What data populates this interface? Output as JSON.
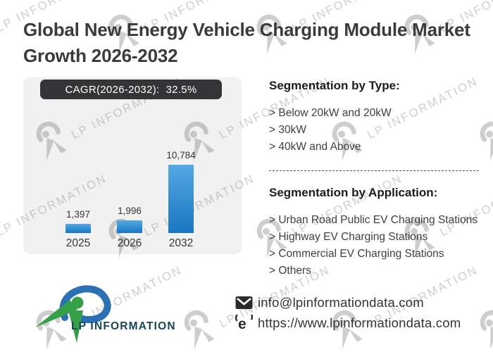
{
  "header": {
    "title": "Global New Energy Vehicle Charging Module Market Growth 2026-2032"
  },
  "watermark": {
    "text": "LP INFORMATION"
  },
  "chart_data": {
    "type": "bar",
    "badge_label": "CAGR(2026-2032):",
    "badge_value": "32.5%",
    "categories": [
      "2025",
      "2026",
      "2032"
    ],
    "values": [
      1397,
      1996,
      10784
    ],
    "value_labels": [
      "1,397",
      "1,996",
      "10,784"
    ],
    "ylim": [
      0,
      11000
    ],
    "legend": "none",
    "grid": "off",
    "panel_bg": "#f1f1f2",
    "bar_color_top": "#55a9e3",
    "bar_color_bottom": "#1a76c0"
  },
  "segmentation_type": {
    "heading": "Segmentation by Type:",
    "prefix": "> ",
    "items": [
      "Below 20kW and 20kW",
      "30kW",
      "40kW and Above"
    ]
  },
  "segmentation_application": {
    "heading": "Segmentation by Application:",
    "prefix": "> ",
    "items": [
      "Urban Road Public EV Charging Stations",
      "Highway EV Charging Stations",
      "Commercial EV Charging Stations",
      "Others"
    ]
  },
  "footer": {
    "brand": "LP INFORMATION",
    "email": "info@lpinformationdata.com",
    "website": "https://www.lpinformationdata.com"
  }
}
